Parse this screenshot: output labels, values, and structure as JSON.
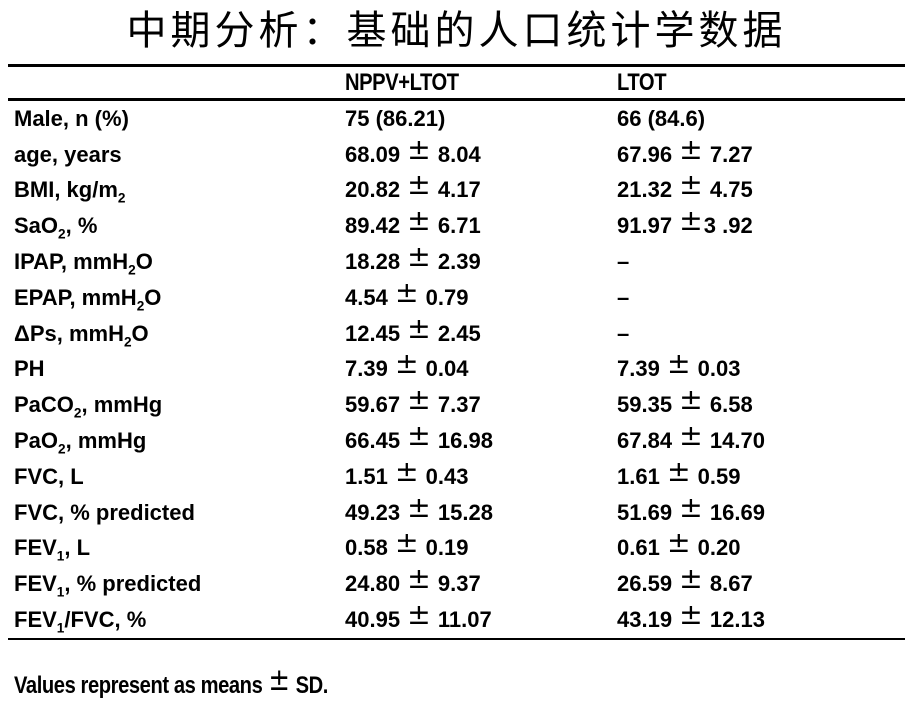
{
  "title": "中期分析：基础的人口统计学数据",
  "colors": {
    "text": "#000000",
    "background": "#ffffff",
    "rule": "#000000"
  },
  "table": {
    "columns": [
      "",
      "NPPV+LTOT",
      "LTOT"
    ],
    "rows": [
      {
        "label": [
          {
            "t": "Male, n (%)"
          }
        ],
        "nppv_ltot": "75 (86.21)",
        "ltot": "66 (84.6)"
      },
      {
        "label": [
          {
            "t": "age, years"
          }
        ],
        "nppv_ltot": "68.09 ± 8.04",
        "ltot": "67.96 ± 7.27"
      },
      {
        "label": [
          {
            "t": "BMI, kg/m"
          },
          {
            "t": "2",
            "sub": true
          }
        ],
        "nppv_ltot": "20.82 ± 4.17",
        "ltot": "21.32 ± 4.75"
      },
      {
        "label": [
          {
            "t": "SaO"
          },
          {
            "t": "2",
            "sub": true
          },
          {
            "t": ", %"
          }
        ],
        "nppv_ltot": "89.42 ± 6.71",
        "ltot": "91.97 ±3 .92"
      },
      {
        "label": [
          {
            "t": "IPAP, mmH"
          },
          {
            "t": "2",
            "sub": true
          },
          {
            "t": "O"
          }
        ],
        "nppv_ltot": "18.28 ± 2.39",
        "ltot": "–"
      },
      {
        "label": [
          {
            "t": "EPAP, mmH"
          },
          {
            "t": "2",
            "sub": true
          },
          {
            "t": "O"
          }
        ],
        "nppv_ltot": "4.54 ± 0.79",
        "ltot": "–"
      },
      {
        "label": [
          {
            "t": "ΔPs, mmH"
          },
          {
            "t": "2",
            "sub": true
          },
          {
            "t": "O"
          }
        ],
        "nppv_ltot": "12.45 ± 2.45",
        "ltot": "–"
      },
      {
        "label": [
          {
            "t": "PH"
          }
        ],
        "nppv_ltot": "7.39 ± 0.04",
        "ltot": "7.39 ± 0.03"
      },
      {
        "label": [
          {
            "t": "PaCO"
          },
          {
            "t": "2",
            "sub": true
          },
          {
            "t": ", mmHg"
          }
        ],
        "nppv_ltot": "59.67 ± 7.37",
        "ltot": "59.35 ± 6.58"
      },
      {
        "label": [
          {
            "t": "PaO"
          },
          {
            "t": "2",
            "sub": true
          },
          {
            "t": ", mmHg"
          }
        ],
        "nppv_ltot": "66.45 ± 16.98",
        "ltot": "67.84 ± 14.70"
      },
      {
        "label": [
          {
            "t": "FVC, L"
          }
        ],
        "nppv_ltot": "1.51 ± 0.43",
        "ltot": "1.61 ± 0.59"
      },
      {
        "label": [
          {
            "t": "FVC, % predicted"
          }
        ],
        "nppv_ltot": "49.23 ± 15.28",
        "ltot": "51.69 ± 16.69"
      },
      {
        "label": [
          {
            "t": "FEV"
          },
          {
            "t": "1",
            "sub": true
          },
          {
            "t": ", L"
          }
        ],
        "nppv_ltot": "0.58 ± 0.19",
        "ltot": "0.61 ± 0.20"
      },
      {
        "label": [
          {
            "t": "FEV"
          },
          {
            "t": "1",
            "sub": true
          },
          {
            "t": ", % predicted"
          }
        ],
        "nppv_ltot": "24.80 ± 9.37",
        "ltot": "26.59 ± 8.67"
      },
      {
        "label": [
          {
            "t": "FEV"
          },
          {
            "t": "1",
            "sub": true
          },
          {
            "t": "/FVC, %"
          }
        ],
        "nppv_ltot": "40.95 ± 11.07",
        "ltot": "43.19 ± 12.13"
      }
    ]
  },
  "footer": "Values represent as means ± SD."
}
